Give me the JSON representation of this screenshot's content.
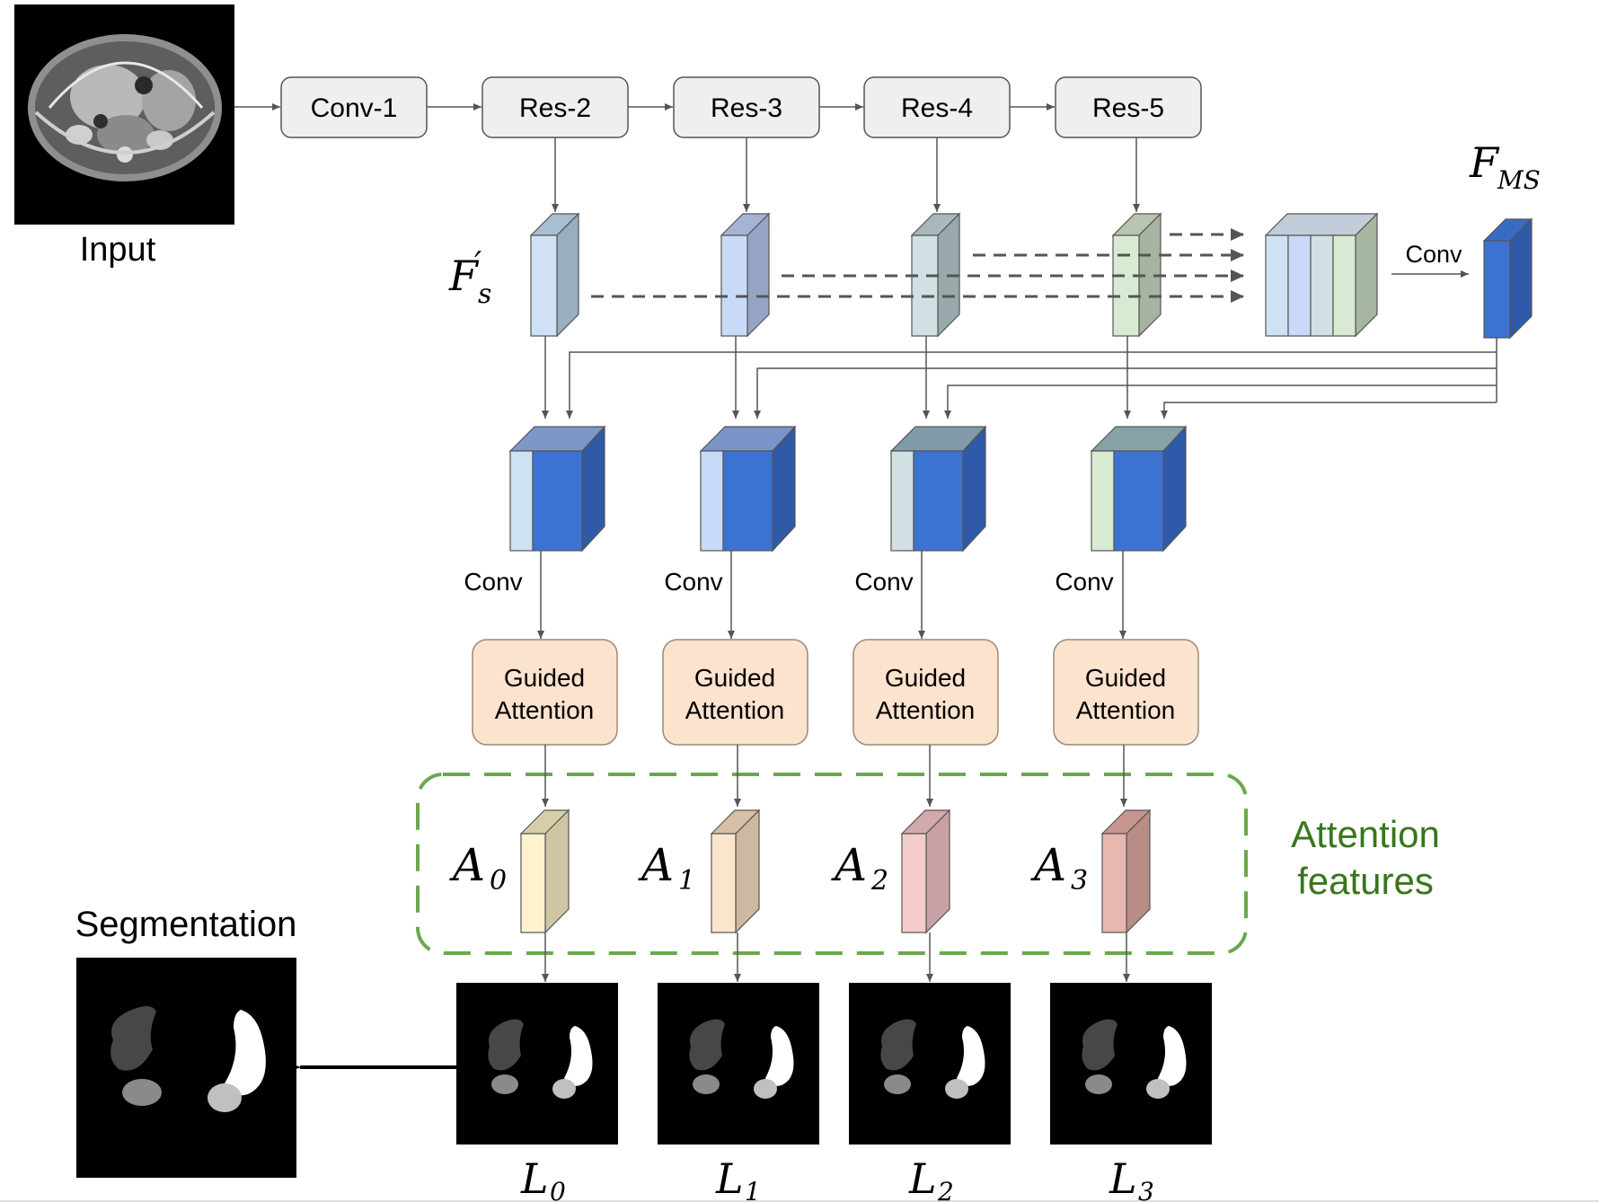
{
  "input_label": "Input",
  "segmentation_label": "Segmentation",
  "backbone": [
    "Conv-1",
    "Res-2",
    "Res-3",
    "Res-4",
    "Res-5"
  ],
  "fs_label": {
    "main": "F",
    "prime": "′",
    "sub": "s"
  },
  "fms_label": {
    "main": "F",
    "sub": "MS"
  },
  "conv_label": "Conv",
  "branch_conv_labels": [
    "Conv",
    "Conv",
    "Conv",
    "Conv"
  ],
  "guided_attention": [
    {
      "line1": "Guided",
      "line2": "Attention"
    },
    {
      "line1": "Guided",
      "line2": "Attention"
    },
    {
      "line1": "Guided",
      "line2": "Attention"
    },
    {
      "line1": "Guided",
      "line2": "Attention"
    }
  ],
  "attention_features_label": {
    "line1": "Attention",
    "line2": "features"
  },
  "attention_maps": [
    {
      "sym": "A",
      "sub": "0"
    },
    {
      "sym": "A",
      "sub": "1"
    },
    {
      "sym": "A",
      "sub": "2"
    },
    {
      "sym": "A",
      "sub": "3"
    }
  ],
  "outputs": [
    {
      "sym": "L",
      "sub": "0"
    },
    {
      "sym": "L",
      "sub": "1"
    },
    {
      "sym": "L",
      "sub": "2"
    },
    {
      "sym": "L",
      "sub": "3"
    }
  ],
  "colors": {
    "backbone_box": "#efefef",
    "guided_box": "#fbe3cd",
    "guided_border": "#9a8a7a",
    "fms_blue": "#3c73d2",
    "attention_border": "#6aa84f",
    "attention_text": "#38761d",
    "fs_colors": [
      "#cfe2f3",
      "#c9daf8",
      "#d0e0e3",
      "#d9ead3"
    ],
    "a_colors": [
      "#fff2cc",
      "#fce5cd",
      "#f4cccc",
      "#e6b8af"
    ]
  }
}
